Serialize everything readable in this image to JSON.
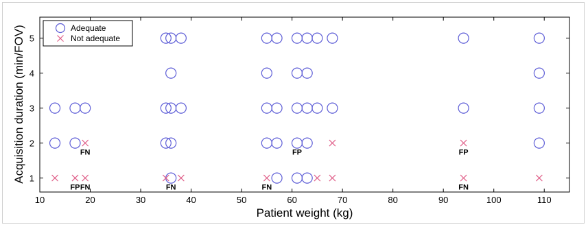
{
  "chart_data": {
    "type": "scatter",
    "title": "",
    "xlabel": "Patient weight (kg)",
    "ylabel": "Acquisition duration (min/FOV)",
    "xlim": [
      10,
      115
    ],
    "ylim": [
      0.6,
      5.6
    ],
    "xticks": [
      10,
      20,
      30,
      40,
      50,
      60,
      70,
      80,
      90,
      100,
      110
    ],
    "yticks": [
      1,
      2,
      3,
      4,
      5
    ],
    "grid": false,
    "legend_position": "top-left",
    "series": [
      {
        "name": "Adequate",
        "marker": "circle",
        "color": "#5b5bd6",
        "points": [
          [
            13,
            3
          ],
          [
            17,
            3
          ],
          [
            19,
            3
          ],
          [
            13,
            2
          ],
          [
            17,
            2
          ],
          [
            35,
            5
          ],
          [
            36,
            5
          ],
          [
            38,
            5
          ],
          [
            36,
            4
          ],
          [
            35,
            3
          ],
          [
            36,
            3
          ],
          [
            38,
            3
          ],
          [
            35,
            2
          ],
          [
            36,
            2
          ],
          [
            36,
            1
          ],
          [
            55,
            5
          ],
          [
            57,
            5
          ],
          [
            61,
            5
          ],
          [
            63,
            5
          ],
          [
            65,
            5
          ],
          [
            68,
            5
          ],
          [
            55,
            4
          ],
          [
            61,
            4
          ],
          [
            63,
            4
          ],
          [
            55,
            3
          ],
          [
            57,
            3
          ],
          [
            61,
            3
          ],
          [
            63,
            3
          ],
          [
            65,
            3
          ],
          [
            68,
            3
          ],
          [
            55,
            2
          ],
          [
            57,
            2
          ],
          [
            61,
            2
          ],
          [
            63,
            2
          ],
          [
            57,
            1
          ],
          [
            61,
            1
          ],
          [
            63,
            1
          ],
          [
            94,
            5
          ],
          [
            94,
            3
          ],
          [
            109,
            5
          ],
          [
            109,
            4
          ],
          [
            109,
            3
          ],
          [
            109,
            2
          ]
        ]
      },
      {
        "name": "Not adequate",
        "marker": "x",
        "color": "#e0608a",
        "points": [
          [
            19,
            2
          ],
          [
            13,
            1
          ],
          [
            17,
            1
          ],
          [
            19,
            1
          ],
          [
            35,
            1
          ],
          [
            38,
            1
          ],
          [
            55,
            1
          ],
          [
            65,
            1
          ],
          [
            68,
            1
          ],
          [
            68,
            2
          ],
          [
            94,
            2
          ],
          [
            94,
            1
          ],
          [
            109,
            1
          ]
        ]
      }
    ],
    "annotations": [
      {
        "text": "FN",
        "x": 19,
        "y": 2
      },
      {
        "text": "FP",
        "x": 61,
        "y": 2
      },
      {
        "text": "FP",
        "x": 94,
        "y": 2
      },
      {
        "text": "FP",
        "x": 17,
        "y": 1
      },
      {
        "text": "FN",
        "x": 19,
        "y": 1
      },
      {
        "text": "FN",
        "x": 36,
        "y": 1
      },
      {
        "text": "FN",
        "x": 55,
        "y": 1
      },
      {
        "text": "FN",
        "x": 94,
        "y": 1
      }
    ]
  }
}
